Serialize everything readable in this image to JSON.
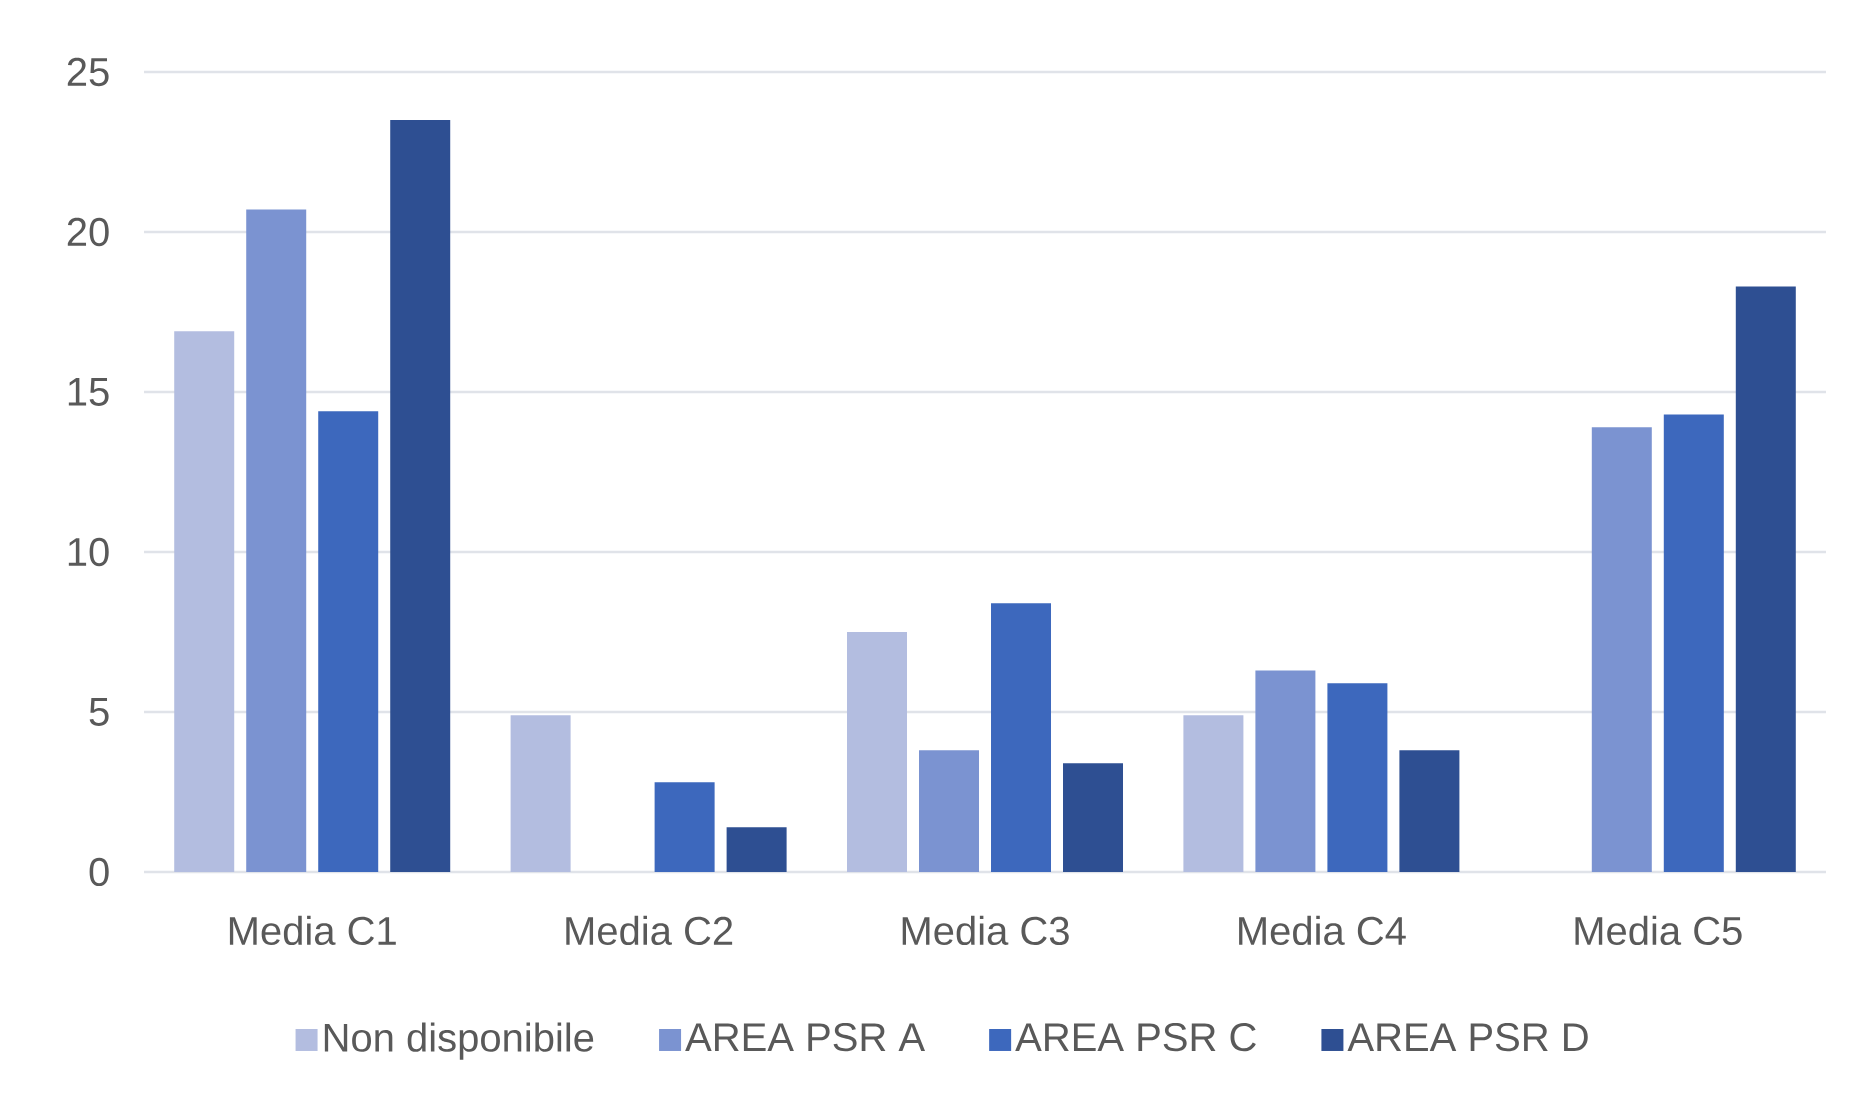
{
  "chart_data": {
    "type": "bar",
    "categories": [
      "Media C1",
      "Media C2",
      "Media C3",
      "Media C4",
      "Media C5"
    ],
    "series": [
      {
        "name": "Non disponibile",
        "color": "#b3bde0",
        "values": [
          16.9,
          4.9,
          7.5,
          4.9,
          null
        ]
      },
      {
        "name": "AREA PSR A",
        "color": "#7b93d1",
        "values": [
          20.7,
          null,
          3.8,
          6.3,
          13.9
        ]
      },
      {
        "name": "AREA PSR C",
        "color": "#3d68bd",
        "values": [
          14.4,
          2.8,
          8.4,
          5.9,
          14.3
        ]
      },
      {
        "name": "AREA PSR D",
        "color": "#2e4f92",
        "values": [
          23.5,
          1.4,
          3.4,
          3.8,
          18.3
        ]
      }
    ],
    "ylim": [
      0,
      25
    ],
    "yticks": [
      0,
      5,
      10,
      15,
      20,
      25
    ],
    "grid": "y",
    "legend": "bottom"
  }
}
